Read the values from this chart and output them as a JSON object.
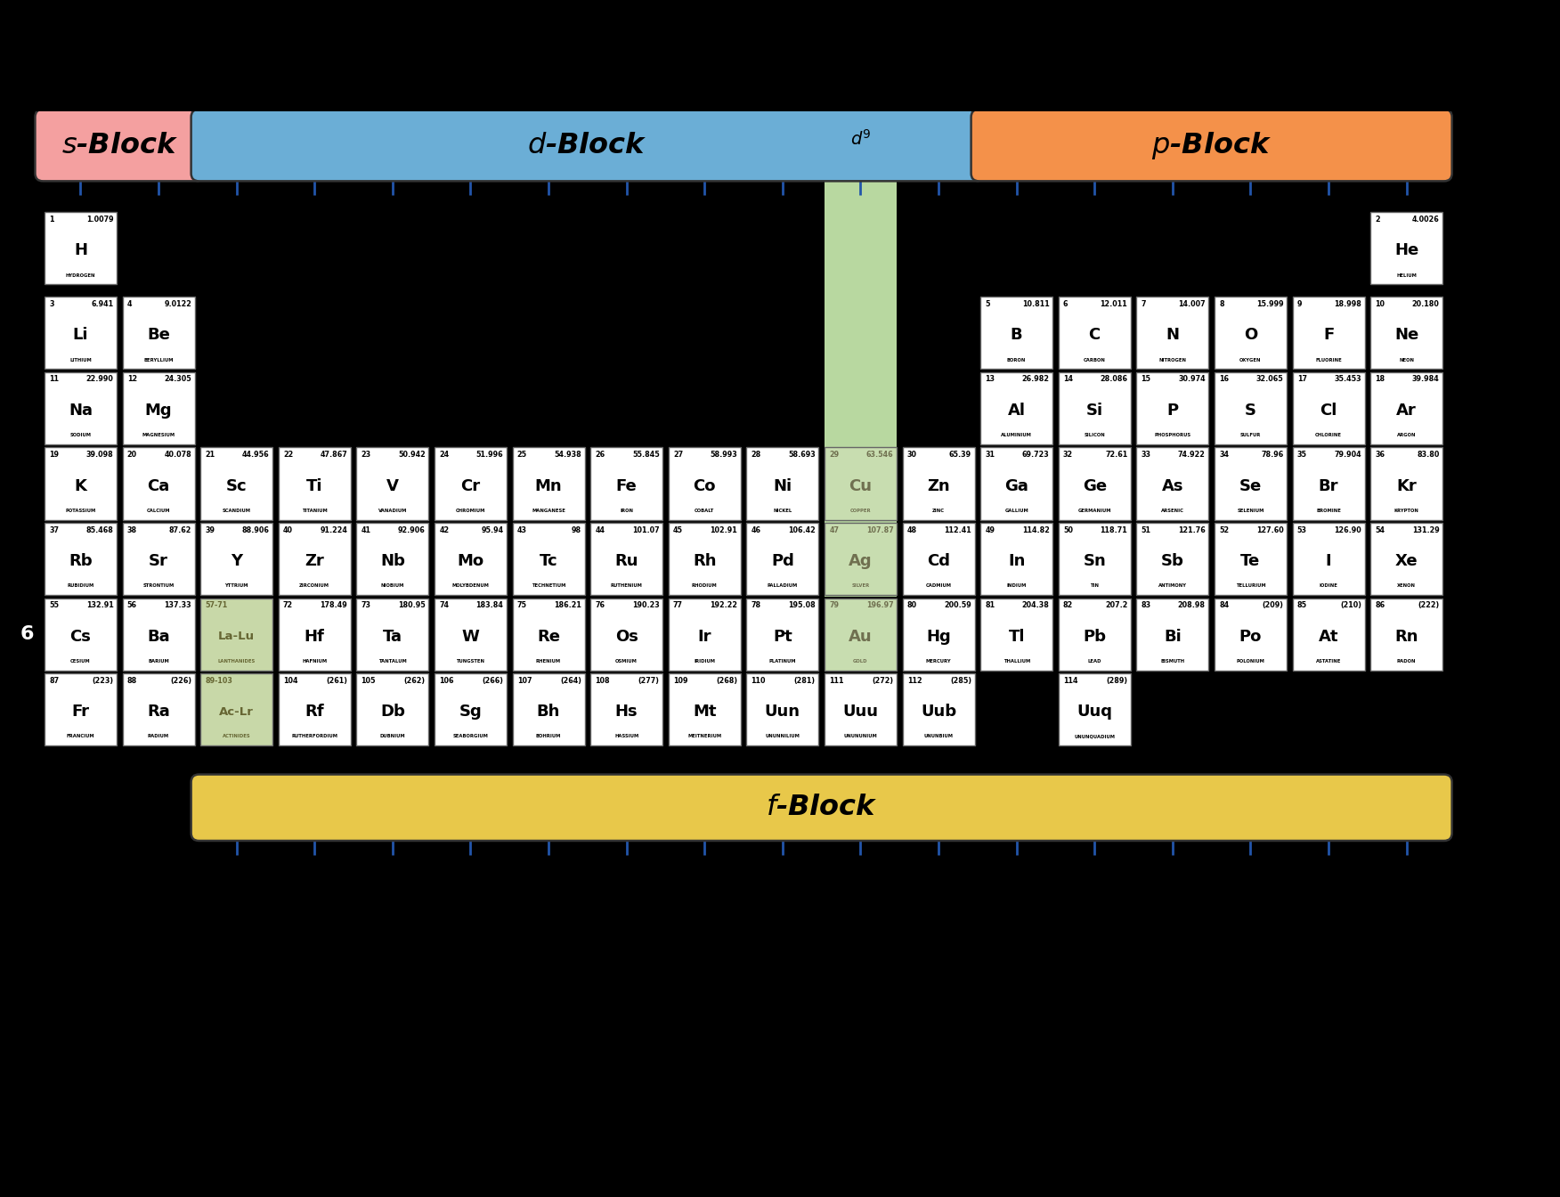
{
  "elements": [
    {
      "num": 1,
      "sym": "H",
      "name": "HYDROGEN",
      "mass": "1.0079",
      "col": 1,
      "row": 1
    },
    {
      "num": 2,
      "sym": "He",
      "name": "HELIUM",
      "mass": "4.0026",
      "col": 18,
      "row": 1
    },
    {
      "num": 3,
      "sym": "Li",
      "name": "LITHIUM",
      "mass": "6.941",
      "col": 1,
      "row": 2
    },
    {
      "num": 4,
      "sym": "Be",
      "name": "BERYLLIUM",
      "mass": "9.0122",
      "col": 2,
      "row": 2
    },
    {
      "num": 5,
      "sym": "B",
      "name": "BORON",
      "mass": "10.811",
      "col": 13,
      "row": 2
    },
    {
      "num": 6,
      "sym": "C",
      "name": "CARBON",
      "mass": "12.011",
      "col": 14,
      "row": 2
    },
    {
      "num": 7,
      "sym": "N",
      "name": "NITROGEN",
      "mass": "14.007",
      "col": 15,
      "row": 2
    },
    {
      "num": 8,
      "sym": "O",
      "name": "OXYGEN",
      "mass": "15.999",
      "col": 16,
      "row": 2
    },
    {
      "num": 9,
      "sym": "F",
      "name": "FLUORINE",
      "mass": "18.998",
      "col": 17,
      "row": 2
    },
    {
      "num": 10,
      "sym": "Ne",
      "name": "NEON",
      "mass": "20.180",
      "col": 18,
      "row": 2
    },
    {
      "num": 11,
      "sym": "Na",
      "name": "SODIUM",
      "mass": "22.990",
      "col": 1,
      "row": 3
    },
    {
      "num": 12,
      "sym": "Mg",
      "name": "MAGNESIUM",
      "mass": "24.305",
      "col": 2,
      "row": 3
    },
    {
      "num": 13,
      "sym": "Al",
      "name": "ALUMINIUM",
      "mass": "26.982",
      "col": 13,
      "row": 3
    },
    {
      "num": 14,
      "sym": "Si",
      "name": "SILICON",
      "mass": "28.086",
      "col": 14,
      "row": 3
    },
    {
      "num": 15,
      "sym": "P",
      "name": "PHOSPHORUS",
      "mass": "30.974",
      "col": 15,
      "row": 3
    },
    {
      "num": 16,
      "sym": "S",
      "name": "SULFUR",
      "mass": "32.065",
      "col": 16,
      "row": 3
    },
    {
      "num": 17,
      "sym": "Cl",
      "name": "CHLORINE",
      "mass": "35.453",
      "col": 17,
      "row": 3
    },
    {
      "num": 18,
      "sym": "Ar",
      "name": "ARGON",
      "mass": "39.984",
      "col": 18,
      "row": 3
    },
    {
      "num": 19,
      "sym": "K",
      "name": "POTASSIUM",
      "mass": "39.098",
      "col": 1,
      "row": 4
    },
    {
      "num": 20,
      "sym": "Ca",
      "name": "CALCIUM",
      "mass": "40.078",
      "col": 2,
      "row": 4
    },
    {
      "num": 21,
      "sym": "Sc",
      "name": "SCANDIUM",
      "mass": "44.956",
      "col": 3,
      "row": 4
    },
    {
      "num": 22,
      "sym": "Ti",
      "name": "TITANIUM",
      "mass": "47.867",
      "col": 4,
      "row": 4
    },
    {
      "num": 23,
      "sym": "V",
      "name": "VANADIUM",
      "mass": "50.942",
      "col": 5,
      "row": 4
    },
    {
      "num": 24,
      "sym": "Cr",
      "name": "CHROMIUM",
      "mass": "51.996",
      "col": 6,
      "row": 4
    },
    {
      "num": 25,
      "sym": "Mn",
      "name": "MANGANESE",
      "mass": "54.938",
      "col": 7,
      "row": 4
    },
    {
      "num": 26,
      "sym": "Fe",
      "name": "IRON",
      "mass": "55.845",
      "col": 8,
      "row": 4
    },
    {
      "num": 27,
      "sym": "Co",
      "name": "COBALT",
      "mass": "58.993",
      "col": 9,
      "row": 4
    },
    {
      "num": 28,
      "sym": "Ni",
      "name": "NICKEL",
      "mass": "58.693",
      "col": 10,
      "row": 4
    },
    {
      "num": 29,
      "sym": "Cu",
      "name": "COPPER",
      "mass": "63.546",
      "col": 11,
      "row": 4,
      "d9": true
    },
    {
      "num": 30,
      "sym": "Zn",
      "name": "ZINC",
      "mass": "65.39",
      "col": 12,
      "row": 4
    },
    {
      "num": 31,
      "sym": "Ga",
      "name": "GALLIUM",
      "mass": "69.723",
      "col": 13,
      "row": 4
    },
    {
      "num": 32,
      "sym": "Ge",
      "name": "GERMANIUM",
      "mass": "72.61",
      "col": 14,
      "row": 4
    },
    {
      "num": 33,
      "sym": "As",
      "name": "ARSENIC",
      "mass": "74.922",
      "col": 15,
      "row": 4
    },
    {
      "num": 34,
      "sym": "Se",
      "name": "SELENIUM",
      "mass": "78.96",
      "col": 16,
      "row": 4
    },
    {
      "num": 35,
      "sym": "Br",
      "name": "BROMINE",
      "mass": "79.904",
      "col": 17,
      "row": 4
    },
    {
      "num": 36,
      "sym": "Kr",
      "name": "KRYPTON",
      "mass": "83.80",
      "col": 18,
      "row": 4
    },
    {
      "num": 37,
      "sym": "Rb",
      "name": "RUBIDIUM",
      "mass": "85.468",
      "col": 1,
      "row": 5
    },
    {
      "num": 38,
      "sym": "Sr",
      "name": "STRONTIUM",
      "mass": "87.62",
      "col": 2,
      "row": 5
    },
    {
      "num": 39,
      "sym": "Y",
      "name": "YTTRIUM",
      "mass": "88.906",
      "col": 3,
      "row": 5
    },
    {
      "num": 40,
      "sym": "Zr",
      "name": "ZIRCONIUM",
      "mass": "91.224",
      "col": 4,
      "row": 5
    },
    {
      "num": 41,
      "sym": "Nb",
      "name": "NIOBIUM",
      "mass": "92.906",
      "col": 5,
      "row": 5
    },
    {
      "num": 42,
      "sym": "Mo",
      "name": "MOLYBDENUM",
      "mass": "95.94",
      "col": 6,
      "row": 5
    },
    {
      "num": 43,
      "sym": "Tc",
      "name": "TECHNETIUM",
      "mass": "98",
      "col": 7,
      "row": 5
    },
    {
      "num": 44,
      "sym": "Ru",
      "name": "RUTHENIUM",
      "mass": "101.07",
      "col": 8,
      "row": 5
    },
    {
      "num": 45,
      "sym": "Rh",
      "name": "RHODIUM",
      "mass": "102.91",
      "col": 9,
      "row": 5
    },
    {
      "num": 46,
      "sym": "Pd",
      "name": "PALLADIUM",
      "mass": "106.42",
      "col": 10,
      "row": 5
    },
    {
      "num": 47,
      "sym": "Ag",
      "name": "SILVER",
      "mass": "107.87",
      "col": 11,
      "row": 5,
      "d9": true
    },
    {
      "num": 48,
      "sym": "Cd",
      "name": "CADMIUM",
      "mass": "112.41",
      "col": 12,
      "row": 5
    },
    {
      "num": 49,
      "sym": "In",
      "name": "INDIUM",
      "mass": "114.82",
      "col": 13,
      "row": 5
    },
    {
      "num": 50,
      "sym": "Sn",
      "name": "TIN",
      "mass": "118.71",
      "col": 14,
      "row": 5
    },
    {
      "num": 51,
      "sym": "Sb",
      "name": "ANTIMONY",
      "mass": "121.76",
      "col": 15,
      "row": 5
    },
    {
      "num": 52,
      "sym": "Te",
      "name": "TELLURIUM",
      "mass": "127.60",
      "col": 16,
      "row": 5
    },
    {
      "num": 53,
      "sym": "I",
      "name": "IODINE",
      "mass": "126.90",
      "col": 17,
      "row": 5
    },
    {
      "num": 54,
      "sym": "Xe",
      "name": "XENON",
      "mass": "131.29",
      "col": 18,
      "row": 5
    },
    {
      "num": 55,
      "sym": "Cs",
      "name": "CESIUM",
      "mass": "132.91",
      "col": 1,
      "row": 6
    },
    {
      "num": 56,
      "sym": "Ba",
      "name": "BARIUM",
      "mass": "137.33",
      "col": 2,
      "row": 6
    },
    {
      "num": 72,
      "sym": "Hf",
      "name": "HAFNIUM",
      "mass": "178.49",
      "col": 4,
      "row": 6
    },
    {
      "num": 73,
      "sym": "Ta",
      "name": "TANTALUM",
      "mass": "180.95",
      "col": 5,
      "row": 6
    },
    {
      "num": 74,
      "sym": "W",
      "name": "TUNGSTEN",
      "mass": "183.84",
      "col": 6,
      "row": 6
    },
    {
      "num": 75,
      "sym": "Re",
      "name": "RHENIUM",
      "mass": "186.21",
      "col": 7,
      "row": 6
    },
    {
      "num": 76,
      "sym": "Os",
      "name": "OSMIUM",
      "mass": "190.23",
      "col": 8,
      "row": 6
    },
    {
      "num": 77,
      "sym": "Ir",
      "name": "IRIDIUM",
      "mass": "192.22",
      "col": 9,
      "row": 6
    },
    {
      "num": 78,
      "sym": "Pt",
      "name": "PLATINUM",
      "mass": "195.08",
      "col": 10,
      "row": 6
    },
    {
      "num": 79,
      "sym": "Au",
      "name": "GOLD",
      "mass": "196.97",
      "col": 11,
      "row": 6,
      "d9": true
    },
    {
      "num": 80,
      "sym": "Hg",
      "name": "MERCURY",
      "mass": "200.59",
      "col": 12,
      "row": 6
    },
    {
      "num": 81,
      "sym": "Tl",
      "name": "THALLIUM",
      "mass": "204.38",
      "col": 13,
      "row": 6
    },
    {
      "num": 82,
      "sym": "Pb",
      "name": "LEAD",
      "mass": "207.2",
      "col": 14,
      "row": 6
    },
    {
      "num": 83,
      "sym": "Bi",
      "name": "BISMUTH",
      "mass": "208.98",
      "col": 15,
      "row": 6
    },
    {
      "num": 84,
      "sym": "Po",
      "name": "POLONIUM",
      "mass": "(209)",
      "col": 16,
      "row": 6
    },
    {
      "num": 85,
      "sym": "At",
      "name": "ASTATINE",
      "mass": "(210)",
      "col": 17,
      "row": 6
    },
    {
      "num": 86,
      "sym": "Rn",
      "name": "RADON",
      "mass": "(222)",
      "col": 18,
      "row": 6
    },
    {
      "num": 87,
      "sym": "Fr",
      "name": "FRANCIUM",
      "mass": "(223)",
      "col": 1,
      "row": 7
    },
    {
      "num": 88,
      "sym": "Ra",
      "name": "RADIUM",
      "mass": "(226)",
      "col": 2,
      "row": 7
    },
    {
      "num": 104,
      "sym": "Rf",
      "name": "RUTHERFORDIUM",
      "mass": "(261)",
      "col": 4,
      "row": 7
    },
    {
      "num": 105,
      "sym": "Db",
      "name": "DUBNIUM",
      "mass": "(262)",
      "col": 5,
      "row": 7
    },
    {
      "num": 106,
      "sym": "Sg",
      "name": "SEABORGIUM",
      "mass": "(266)",
      "col": 6,
      "row": 7
    },
    {
      "num": 107,
      "sym": "Bh",
      "name": "BOHRIUM",
      "mass": "(264)",
      "col": 7,
      "row": 7
    },
    {
      "num": 108,
      "sym": "Hs",
      "name": "HASSIUM",
      "mass": "(277)",
      "col": 8,
      "row": 7
    },
    {
      "num": 109,
      "sym": "Mt",
      "name": "MEITNERIUM",
      "mass": "(268)",
      "col": 9,
      "row": 7
    },
    {
      "num": 110,
      "sym": "Uun",
      "name": "UNUNNILIUM",
      "mass": "(281)",
      "col": 10,
      "row": 7
    },
    {
      "num": 111,
      "sym": "Uuu",
      "name": "UNUNUNIUM",
      "mass": "(272)",
      "col": 11,
      "row": 7
    },
    {
      "num": 112,
      "sym": "Uub",
      "name": "UNUNBIUM",
      "mass": "(285)",
      "col": 12,
      "row": 7
    },
    {
      "num": 114,
      "sym": "Uuq",
      "name": "UNUNQUADIUM",
      "mass": "(289)",
      "col": 14,
      "row": 7
    }
  ],
  "lan_cells": [
    {
      "label": "57-71",
      "sublabel": "La-Lu",
      "name": "LANTHANIDES",
      "col": 3,
      "row": 6
    },
    {
      "label": "89-103",
      "sublabel": "Ac-Lr",
      "name": "ACTINIDES",
      "col": 3,
      "row": 7
    }
  ],
  "bg_color": "#000000",
  "cell_white": "#ffffff",
  "cell_d9_color": "#c8ddb0",
  "cell_lan_color": "#c8d8a8",
  "s_block_color": "#f4a0a0",
  "d_block_color": "#6baed6",
  "p_block_color": "#f4914a",
  "f_block_color": "#e8c84a",
  "d9_col_bg": "#b8d8a0",
  "tick_color": "#2255aa",
  "border_color": "#666666",
  "lan_text_color": "#666633"
}
